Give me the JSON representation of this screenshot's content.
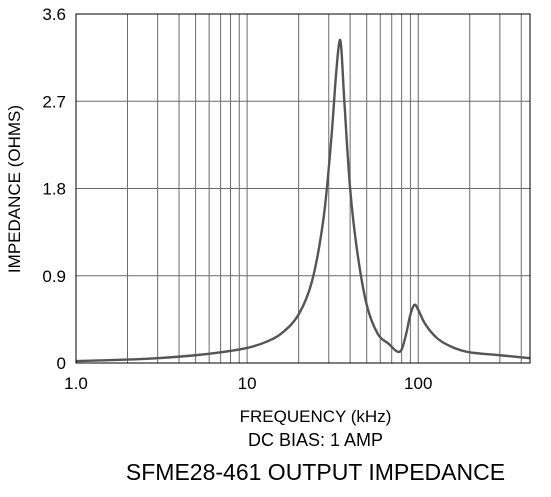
{
  "chart_data": {
    "type": "line",
    "title": "SFME28-461 OUTPUT IMPEDANCE",
    "subtitle": "DC BIAS: 1 AMP",
    "xlabel": "FREQUENCY (kHz)",
    "ylabel": "IMPEDANCE (OHMS)",
    "x_scale": "log",
    "xlim": [
      1.0,
      450
    ],
    "ylim": [
      0,
      3.6
    ],
    "grid": true,
    "x_tick_labels": [
      "1.0",
      "10",
      "100"
    ],
    "y_tick_labels": [
      "0",
      "0.9",
      "1.8",
      "2.7",
      "3.6"
    ],
    "series": [
      {
        "color": "#555555",
        "x": [
          1.0,
          2.0,
          3.0,
          5.0,
          7.0,
          10,
          13,
          16,
          20,
          24,
          28,
          31,
          33,
          34.5,
          35.5,
          37,
          40,
          44,
          50,
          58,
          67,
          75,
          80,
          85,
          90,
          95,
          100,
          110,
          130,
          160,
          200,
          300,
          450
        ],
        "values": [
          0.02,
          0.035,
          0.05,
          0.08,
          0.11,
          0.155,
          0.22,
          0.31,
          0.5,
          0.85,
          1.5,
          2.3,
          2.95,
          3.3,
          3.25,
          2.7,
          1.8,
          1.15,
          0.6,
          0.3,
          0.2,
          0.12,
          0.14,
          0.3,
          0.5,
          0.6,
          0.55,
          0.4,
          0.25,
          0.16,
          0.11,
          0.08,
          0.05
        ]
      }
    ]
  }
}
